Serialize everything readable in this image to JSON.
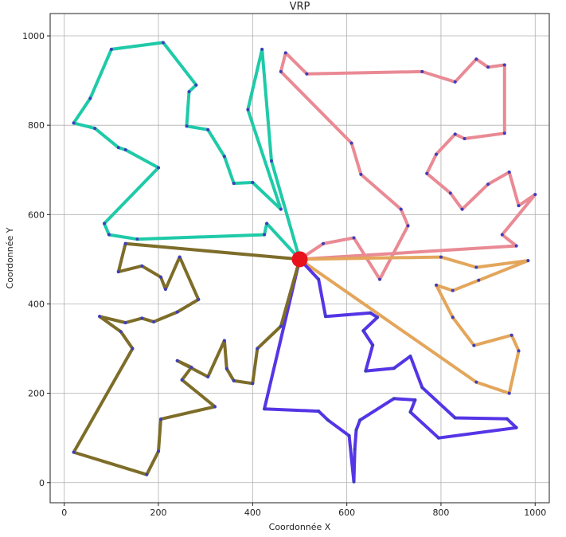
{
  "chart_data": {
    "type": "line",
    "title": "VRP",
    "xlabel": "Coordonnée X",
    "ylabel": "Coordonnée Y",
    "xlim": [
      -30,
      1030
    ],
    "ylim": [
      -45,
      1050
    ],
    "xticks": [
      0,
      200,
      400,
      600,
      800,
      1000
    ],
    "yticks": [
      0,
      200,
      400,
      600,
      800,
      1000
    ],
    "grid": true,
    "depot": {
      "x": 500,
      "y": 500,
      "color": "#e8121c"
    },
    "series": [
      {
        "color": "#1fcaa8",
        "points": [
          [
            500,
            500
          ],
          [
            430,
            580
          ],
          [
            425,
            555
          ],
          [
            155,
            545
          ],
          [
            95,
            555
          ],
          [
            85,
            580
          ],
          [
            200,
            705
          ],
          [
            130,
            745
          ],
          [
            115,
            750
          ],
          [
            65,
            793
          ],
          [
            20,
            805
          ],
          [
            55,
            860
          ],
          [
            100,
            970
          ],
          [
            210,
            985
          ],
          [
            280,
            890
          ],
          [
            265,
            875
          ],
          [
            260,
            798
          ],
          [
            305,
            790
          ],
          [
            340,
            730
          ],
          [
            360,
            670
          ],
          [
            400,
            672
          ],
          [
            460,
            612
          ],
          [
            390,
            835
          ],
          [
            420,
            970
          ],
          [
            440,
            720
          ],
          [
            500,
            500
          ]
        ]
      },
      {
        "color": "#e98a94",
        "points": [
          [
            500,
            500
          ],
          [
            550,
            535
          ],
          [
            615,
            548
          ],
          [
            670,
            455
          ],
          [
            730,
            575
          ],
          [
            715,
            612
          ],
          [
            630,
            690
          ],
          [
            610,
            760
          ],
          [
            460,
            920
          ],
          [
            470,
            962
          ],
          [
            515,
            915
          ],
          [
            760,
            920
          ],
          [
            830,
            897
          ],
          [
            875,
            948
          ],
          [
            900,
            930
          ],
          [
            935,
            935
          ],
          [
            935,
            782
          ],
          [
            850,
            770
          ],
          [
            830,
            780
          ],
          [
            790,
            735
          ],
          [
            770,
            692
          ],
          [
            820,
            648
          ],
          [
            845,
            612
          ],
          [
            900,
            668
          ],
          [
            945,
            695
          ],
          [
            965,
            620
          ],
          [
            1000,
            645
          ],
          [
            930,
            555
          ],
          [
            960,
            530
          ],
          [
            500,
            500
          ]
        ]
      },
      {
        "color": "#e3a65b",
        "points": [
          [
            500,
            500
          ],
          [
            800,
            505
          ],
          [
            875,
            482
          ],
          [
            985,
            497
          ],
          [
            880,
            453
          ],
          [
            825,
            430
          ],
          [
            790,
            442
          ],
          [
            825,
            370
          ],
          [
            870,
            307
          ],
          [
            950,
            330
          ],
          [
            965,
            295
          ],
          [
            945,
            200
          ],
          [
            875,
            225
          ],
          [
            500,
            500
          ]
        ]
      },
      {
        "color": "#5535e6",
        "points": [
          [
            500,
            500
          ],
          [
            540,
            455
          ],
          [
            555,
            372
          ],
          [
            650,
            380
          ],
          [
            665,
            370
          ],
          [
            635,
            340
          ],
          [
            655,
            308
          ],
          [
            640,
            250
          ],
          [
            700,
            256
          ],
          [
            735,
            283
          ],
          [
            760,
            213
          ],
          [
            830,
            145
          ],
          [
            940,
            143
          ],
          [
            960,
            123
          ],
          [
            795,
            100
          ],
          [
            735,
            158
          ],
          [
            745,
            185
          ],
          [
            700,
            188
          ],
          [
            628,
            140
          ],
          [
            620,
            118
          ],
          [
            617,
            75
          ],
          [
            615,
            2
          ],
          [
            605,
            105
          ],
          [
            560,
            140
          ],
          [
            540,
            160
          ],
          [
            425,
            165
          ],
          [
            500,
            500
          ]
        ]
      },
      {
        "color": "#7d6d29",
        "points": [
          [
            500,
            500
          ],
          [
            130,
            535
          ],
          [
            115,
            472
          ],
          [
            165,
            485
          ],
          [
            205,
            460
          ],
          [
            215,
            433
          ],
          [
            245,
            505
          ],
          [
            285,
            410
          ],
          [
            240,
            382
          ],
          [
            190,
            360
          ],
          [
            165,
            368
          ],
          [
            130,
            358
          ],
          [
            75,
            372
          ],
          [
            120,
            338
          ],
          [
            145,
            300
          ],
          [
            20,
            68
          ],
          [
            175,
            18
          ],
          [
            200,
            70
          ],
          [
            205,
            142
          ],
          [
            320,
            170
          ],
          [
            250,
            230
          ],
          [
            270,
            258
          ],
          [
            240,
            273
          ],
          [
            305,
            237
          ],
          [
            340,
            318
          ],
          [
            345,
            255
          ],
          [
            360,
            228
          ],
          [
            400,
            222
          ],
          [
            410,
            300
          ],
          [
            460,
            350
          ],
          [
            500,
            500
          ]
        ]
      }
    ]
  }
}
